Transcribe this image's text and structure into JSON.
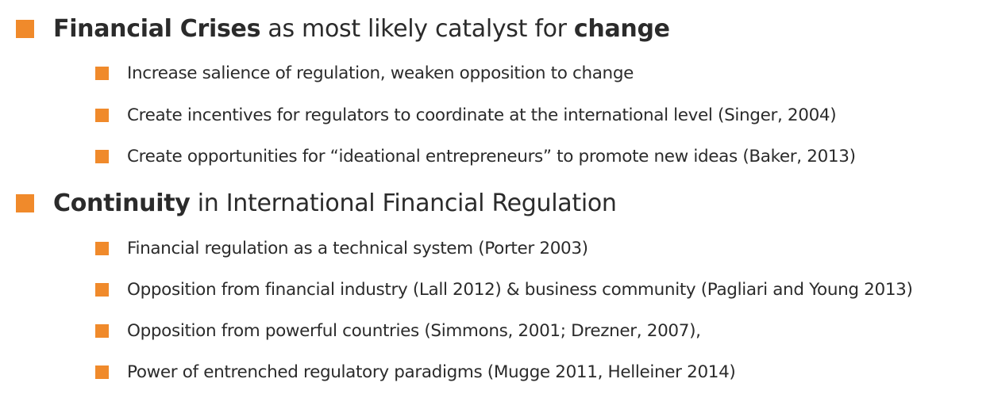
{
  "slide": {
    "section1": {
      "heading_bold1": "Financial Crises",
      "heading_mid": " as most likely catalyst for ",
      "heading_bold2": "change",
      "items": [
        "Increase salience of regulation, weaken opposition to change",
        "Create incentives for regulators to coordinate at the international level (Singer, 2004)",
        "Create opportunities for “ideational entrepreneurs” to promote new ideas (Baker, 2013)"
      ]
    },
    "section2": {
      "heading_bold": "Continuity",
      "heading_rest": " in International Financial Regulation",
      "items": [
        "Financial regulation as a technical system (Porter 2003)",
        "Opposition from financial industry (Lall 2012) & business community (Pagliari and Young 2013)",
        "Opposition from powerful countries (Simmons, 2001; Drezner, 2007),",
        "Power of entrenched regulatory paradigms (Mugge 2011, Helleiner 2014)"
      ]
    },
    "colors": {
      "bullet": "#f08a2b",
      "text": "#2b2b2b"
    }
  }
}
